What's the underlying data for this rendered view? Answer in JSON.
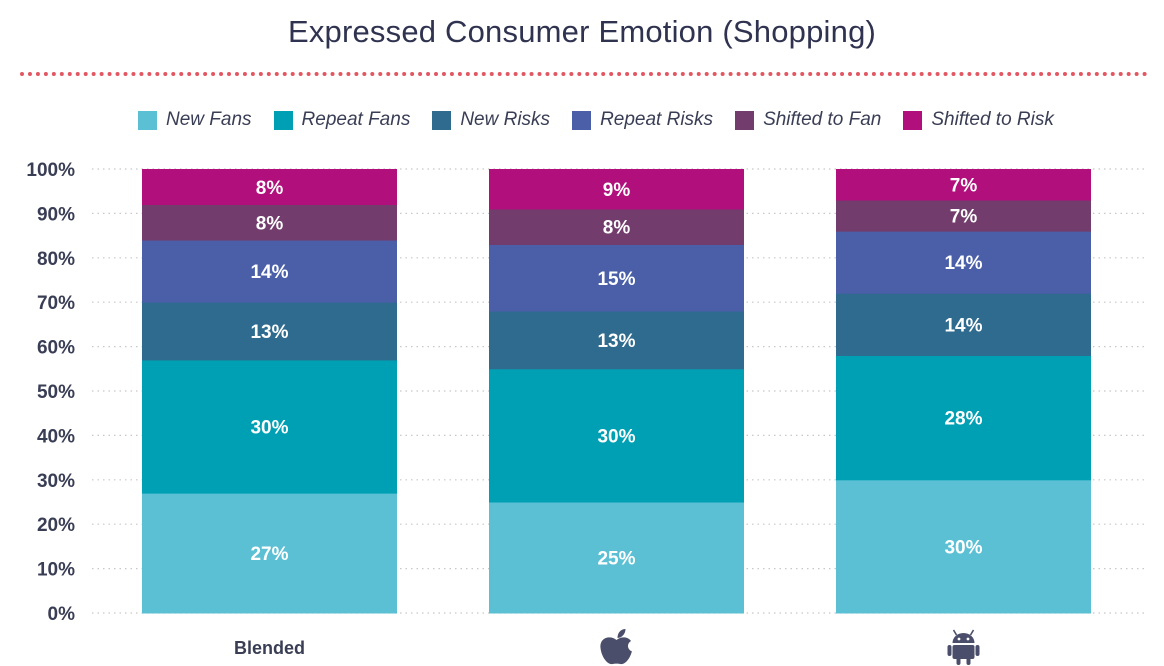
{
  "chart_data": {
    "type": "bar",
    "stacked": true,
    "title": "Expressed Consumer Emotion (Shopping)",
    "categories": [
      "Blended",
      "Apple",
      "Android"
    ],
    "category_display": [
      {
        "label": "Blended",
        "icon": null
      },
      {
        "label": "",
        "icon": "apple-logo-icon"
      },
      {
        "label": "",
        "icon": "android-logo-icon"
      }
    ],
    "y_ticks": [
      "0%",
      "10%",
      "20%",
      "30%",
      "40%",
      "50%",
      "60%",
      "70%",
      "80%",
      "90%",
      "100%"
    ],
    "ylim": [
      0,
      100
    ],
    "grid": true,
    "legend_placement": "top",
    "series": [
      {
        "name": "New Fans",
        "color": "#5bc0d3",
        "values": [
          27,
          25,
          30
        ]
      },
      {
        "name": "Repeat Fans",
        "color": "#00a0b4",
        "values": [
          30,
          30,
          28
        ]
      },
      {
        "name": "New Risks",
        "color": "#2e6b8f",
        "values": [
          13,
          13,
          14
        ]
      },
      {
        "name": "Repeat Risks",
        "color": "#4a5fa8",
        "values": [
          14,
          15,
          14
        ]
      },
      {
        "name": "Shifted to Fan",
        "color": "#723d6c",
        "values": [
          8,
          8,
          7
        ]
      },
      {
        "name": "Shifted to Risk",
        "color": "#b00f7c",
        "values": [
          8,
          9,
          7
        ]
      }
    ]
  }
}
